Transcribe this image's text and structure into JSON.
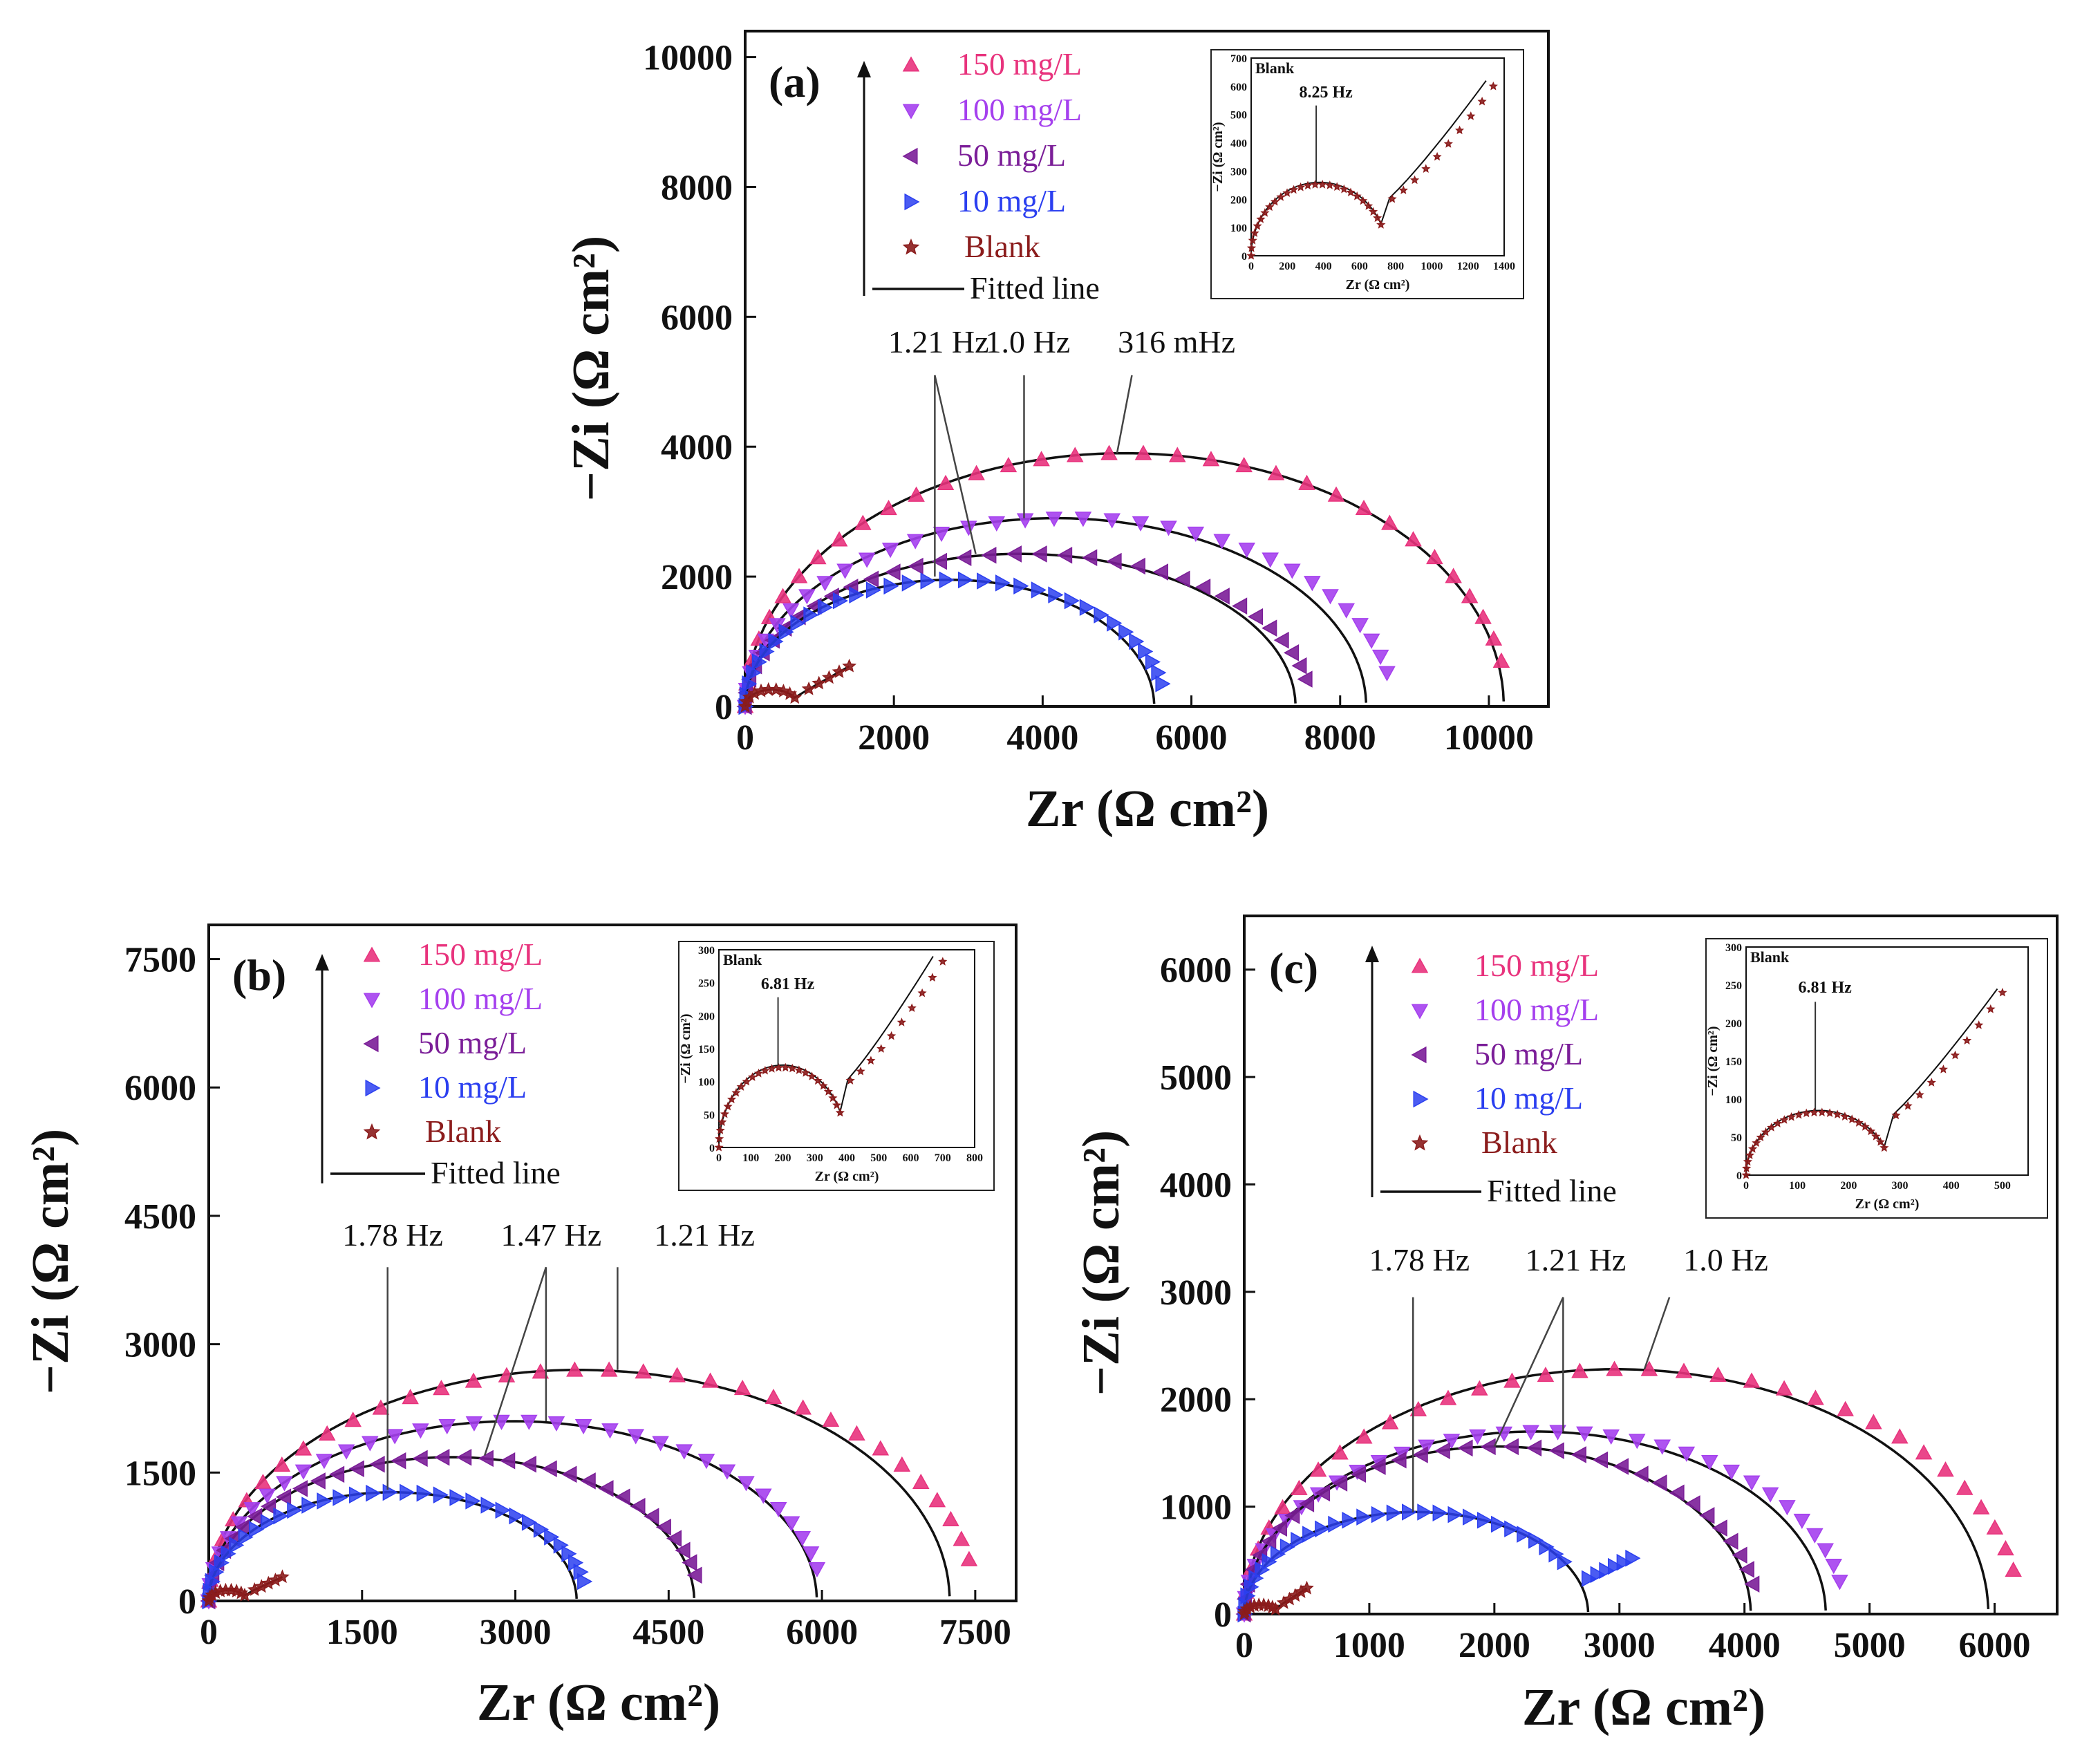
{
  "colors": {
    "c150": "#e8337d",
    "c100": "#a540ee",
    "c50": "#7b1e98",
    "c10": "#2b3ff0",
    "blank": "#8b1c1c",
    "fit": "#111111"
  },
  "legend": [
    {
      "key": "s150",
      "label": "150 mg/L",
      "color_key": "c150",
      "marker": "triangle-up"
    },
    {
      "key": "s100",
      "label": "100 mg/L",
      "color_key": "c100",
      "marker": "triangle-down"
    },
    {
      "key": "s50",
      "label": "50 mg/L",
      "color_key": "c50",
      "marker": "triangle-left"
    },
    {
      "key": "s10",
      "label": "10 mg/L",
      "color_key": "c10",
      "marker": "triangle-right"
    },
    {
      "key": "blank",
      "label": "Blank",
      "color_key": "blank",
      "marker": "star"
    }
  ],
  "legend_fit_label": "Fitted line",
  "chart_data": [
    {
      "panel": "(a)",
      "type": "scatter",
      "xlabel": "Zr (Ω cm²)",
      "ylabel": "−Zi (Ω cm²)",
      "xlim": [
        0,
        10800
      ],
      "ylim": [
        0,
        10400
      ],
      "xticks": [
        0,
        2000,
        4000,
        6000,
        8000,
        10000
      ],
      "yticks": [
        0,
        2000,
        4000,
        6000,
        8000,
        10000
      ],
      "series": [
        {
          "key": "s150",
          "name": "150 mg/L",
          "x0": 0,
          "x1": 10250,
          "top": 3900,
          "xend": 10150,
          "fit_x1": 10200
        },
        {
          "key": "s100",
          "name": "100 mg/L",
          "x0": 0,
          "x1": 8700,
          "top": 2900,
          "xend": 8250,
          "fit_x1": 8350
        },
        {
          "key": "s50",
          "name": "50 mg/L",
          "x0": 0,
          "x1": 7600,
          "top": 2350,
          "xend": 7350,
          "fit_x1": 7400
        },
        {
          "key": "s10",
          "name": "10 mg/L",
          "x0": 0,
          "x1": 5650,
          "top": 1950,
          "xend": 5600,
          "fit_x1": 5500
        },
        {
          "key": "blank",
          "name": "Blank",
          "x0": 0,
          "x1": 720,
          "top": 260,
          "xend": 1400,
          "tail_x": [
            720,
            1400
          ],
          "tail_y": [
            180,
            620
          ]
        }
      ],
      "freq_labels": [
        {
          "text": "1.21 Hz",
          "x": 2600,
          "y": 5450
        },
        {
          "text": "1.0 Hz",
          "x": 3800,
          "y": 5450
        },
        {
          "text": "316 mHz",
          "x": 5800,
          "y": 5450
        }
      ],
      "freq_leaders": [
        {
          "from_x": 2550,
          "from_y": 5100,
          "to_x": 2550,
          "to_y": 2000
        },
        {
          "from_x": 2550,
          "from_y": 5100,
          "to_x": 3100,
          "to_y": 2350
        },
        {
          "from_x": 3750,
          "from_y": 5100,
          "to_x": 3750,
          "to_y": 2900
        },
        {
          "from_x": 5200,
          "from_y": 5100,
          "to_x": 5000,
          "to_y": 3900
        }
      ],
      "inset": {
        "title": "Blank",
        "freq_label": "8.25 Hz",
        "freq_at": 360,
        "xlabel": "Zr (Ω cm²)",
        "ylabel": "−Zi (Ω cm²)",
        "xlim": [
          0,
          1400
        ],
        "ylim": [
          0,
          700
        ],
        "xticks": [
          0,
          200,
          400,
          600,
          800,
          1000,
          1200,
          1400
        ],
        "yticks": [
          0,
          100,
          200,
          300,
          400,
          500,
          600,
          700
        ],
        "arc_x1": 720,
        "arc_top": 260,
        "valley_y": 180,
        "tail_x1": 1300,
        "tail_y1": 620,
        "data_x1": 1340,
        "data_y1": 600
      }
    },
    {
      "panel": "(b)",
      "type": "scatter",
      "xlabel": "Zr (Ω cm²)",
      "ylabel": "−Zi (Ω cm²)",
      "xlim": [
        0,
        7900
      ],
      "ylim": [
        0,
        7900
      ],
      "xticks": [
        0,
        1500,
        3000,
        4500,
        6000,
        7500
      ],
      "yticks": [
        0,
        1500,
        3000,
        4500,
        6000,
        7500
      ],
      "series": [
        {
          "key": "s150",
          "name": "150 mg/L",
          "x0": 0,
          "x1": 7500,
          "top": 2700,
          "xend": 7450,
          "fit_x1": 7250
        },
        {
          "key": "s100",
          "name": "100 mg/L",
          "x0": 0,
          "x1": 6000,
          "top": 2100,
          "xend": 5950,
          "fit_x1": 5950
        },
        {
          "key": "s50",
          "name": "50 mg/L",
          "x0": 0,
          "x1": 4800,
          "top": 1680,
          "xend": 4800,
          "fit_x1": 4750
        },
        {
          "key": "s10",
          "name": "10 mg/L",
          "x0": 0,
          "x1": 3700,
          "top": 1270,
          "xend": 3700,
          "fit_x1": 3600
        },
        {
          "key": "blank",
          "name": "Blank",
          "x0": 0,
          "x1": 380,
          "top": 125,
          "xend": 720,
          "tail_x": [
            380,
            720
          ],
          "tail_y": [
            92,
            280
          ]
        }
      ],
      "freq_labels": [
        {
          "text": "1.78 Hz",
          "x": 1800,
          "y": 4150
        },
        {
          "text": "1.47 Hz",
          "x": 3350,
          "y": 4150
        },
        {
          "text": "1.21 Hz",
          "x": 4850,
          "y": 4150
        }
      ],
      "freq_leaders": [
        {
          "from_x": 1750,
          "from_y": 3900,
          "to_x": 1750,
          "to_y": 1300
        },
        {
          "from_x": 3300,
          "from_y": 3900,
          "to_x": 3300,
          "to_y": 2100
        },
        {
          "from_x": 3300,
          "from_y": 3900,
          "to_x": 2700,
          "to_y": 1700
        },
        {
          "from_x": 4000,
          "from_y": 3900,
          "to_x": 4000,
          "to_y": 2700
        }
      ],
      "inset": {
        "title": "Blank",
        "freq_label": "6.81 Hz",
        "freq_at": 185,
        "xlabel": "Zr (Ω cm²)",
        "ylabel": "−Zi (Ω cm²)",
        "xlim": [
          0,
          800
        ],
        "ylim": [
          0,
          300
        ],
        "xticks": [
          0,
          100,
          200,
          300,
          400,
          500,
          600,
          700,
          800
        ],
        "yticks": [
          0,
          50,
          100,
          150,
          200,
          250,
          300
        ],
        "arc_x1": 380,
        "arc_top": 125,
        "valley_y": 92,
        "tail_x1": 670,
        "tail_y1": 290,
        "data_x1": 700,
        "data_y1": 282
      }
    },
    {
      "panel": "(c)",
      "type": "scatter",
      "xlabel": "Zr (Ω cm²)",
      "ylabel": "−Zi (Ω cm²)",
      "xlim": [
        0,
        6500
      ],
      "ylim": [
        0,
        6500
      ],
      "xticks": [
        0,
        1000,
        2000,
        3000,
        4000,
        5000,
        6000
      ],
      "yticks": [
        0,
        1000,
        2000,
        3000,
        4000,
        5000,
        6000
      ],
      "series": [
        {
          "key": "s150",
          "name": "150 mg/L",
          "x0": 0,
          "x1": 6200,
          "top": 2280,
          "xend": 6200,
          "fit_x1": 5950
        },
        {
          "key": "s100",
          "name": "100 mg/L",
          "x0": 0,
          "x1": 4800,
          "top": 1700,
          "xend": 4750,
          "fit_x1": 4650
        },
        {
          "key": "s50",
          "name": "50 mg/L",
          "x0": 0,
          "x1": 4100,
          "top": 1560,
          "xend": 4100,
          "fit_x1": 4050
        },
        {
          "key": "s10",
          "name": "10 mg/L",
          "x0": 0,
          "x1": 2750,
          "top": 950,
          "xend": 3100,
          "fit_x1": 2750,
          "hook_x": [
            2750,
            3100
          ],
          "hook_y": [
            330,
            520
          ]
        },
        {
          "key": "blank",
          "name": "Blank",
          "x0": 0,
          "x1": 270,
          "top": 85,
          "xend": 500,
          "tail_x": [
            270,
            500
          ],
          "tail_y": [
            70,
            240
          ]
        }
      ],
      "freq_labels": [
        {
          "text": "1.78 Hz",
          "x": 1400,
          "y": 3200
        },
        {
          "text": "1.21 Hz",
          "x": 2650,
          "y": 3200
        },
        {
          "text": "1.0 Hz",
          "x": 3850,
          "y": 3200
        }
      ],
      "freq_leaders": [
        {
          "from_x": 1350,
          "from_y": 2950,
          "to_x": 1350,
          "to_y": 950
        },
        {
          "from_x": 2550,
          "from_y": 2950,
          "to_x": 2550,
          "to_y": 1700
        },
        {
          "from_x": 2550,
          "from_y": 2950,
          "to_x": 2000,
          "to_y": 1560
        },
        {
          "from_x": 3400,
          "from_y": 2950,
          "to_x": 3200,
          "to_y": 2280
        }
      ],
      "inset": {
        "title": "Blank",
        "freq_label": "6.81 Hz",
        "freq_at": 135,
        "xlabel": "Zr (Ω cm²)",
        "ylabel": "−Zi (Ω cm²)",
        "xlim": [
          0,
          550
        ],
        "ylim": [
          0,
          300
        ],
        "xticks": [
          0,
          100,
          200,
          300,
          400,
          500
        ],
        "yticks": [
          0,
          50,
          100,
          150,
          200,
          250,
          300
        ],
        "arc_x1": 270,
        "arc_top": 85,
        "valley_y": 70,
        "tail_x1": 490,
        "tail_y1": 245,
        "data_x1": 500,
        "data_y1": 240
      }
    }
  ]
}
